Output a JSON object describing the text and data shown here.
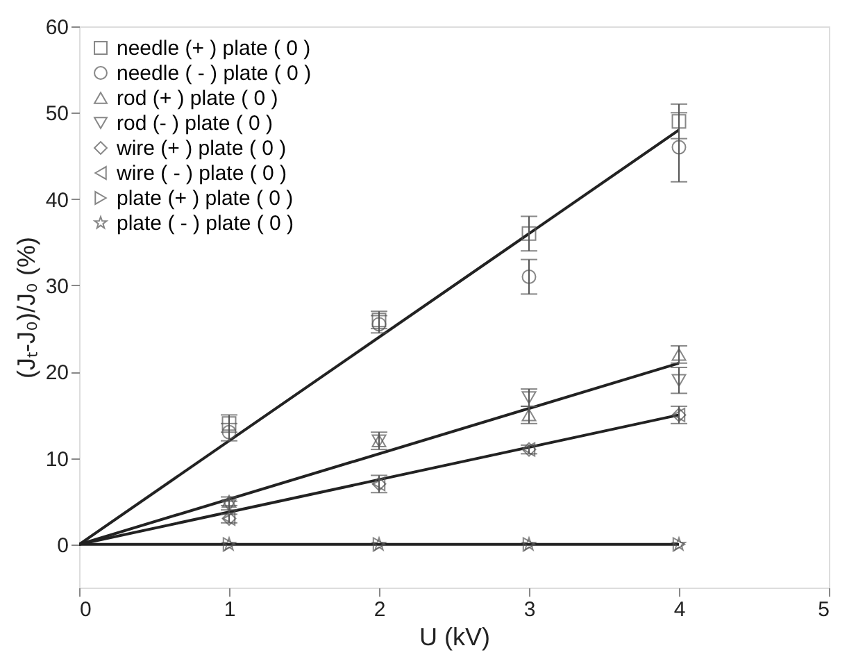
{
  "chart_data": {
    "type": "scatter",
    "xlabel": "U (kV)",
    "ylabel": "(Jₜ-J₀)/J₀ (%)",
    "xlim": [
      0,
      5
    ],
    "xticks": [
      0,
      1,
      2,
      3,
      4,
      5
    ],
    "ylim": [
      -5,
      60
    ],
    "yticks": [
      0,
      10,
      20,
      30,
      40,
      50,
      60
    ],
    "grid": false,
    "legend": "top left",
    "series": [
      {
        "name": "needle (+ ) plate ( 0 )",
        "marker": "square",
        "color": "#555555",
        "x": [
          1,
          2,
          3,
          4
        ],
        "values": [
          14,
          26,
          36,
          49
        ],
        "errors": [
          1,
          1,
          2,
          2
        ]
      },
      {
        "name": "needle ( - ) plate ( 0 )",
        "marker": "circle",
        "color": "#555555",
        "x": [
          1,
          2,
          3,
          4
        ],
        "values": [
          13,
          25.5,
          31,
          46
        ],
        "errors": [
          1,
          1,
          2,
          4
        ]
      },
      {
        "name": "rod (+ ) plate ( 0 )",
        "marker": "triangle",
        "color": "#555555",
        "x": [
          1,
          2,
          3,
          4
        ],
        "values": [
          5,
          12,
          15,
          22
        ],
        "errors": [
          0.5,
          1,
          1,
          1
        ]
      },
      {
        "name": "rod (- ) plate ( 0 )",
        "marker": "triangle-down",
        "color": "#555555",
        "x": [
          1,
          2,
          3,
          4
        ],
        "values": [
          4.5,
          12,
          17,
          19
        ],
        "errors": [
          0.5,
          null,
          1,
          1.5
        ]
      },
      {
        "name": "wire (+ ) plate ( 0 )",
        "marker": "diamond",
        "color": "#555555",
        "x": [
          1,
          2,
          3,
          4
        ],
        "values": [
          3,
          7,
          11,
          15
        ],
        "errors": [
          0.5,
          1,
          0.5,
          1
        ]
      },
      {
        "name": "wire ( - ) plate ( 0 )",
        "marker": "triangle-left",
        "color": "#555555",
        "x": [
          1,
          2,
          3,
          4
        ],
        "values": [
          3,
          7,
          11,
          15
        ]
      },
      {
        "name": "plate (+ ) plate ( 0 )",
        "marker": "triangle-right",
        "color": "#555555",
        "x": [
          1,
          2,
          3,
          4
        ],
        "values": [
          0,
          0,
          0,
          0
        ]
      },
      {
        "name": "plate ( - ) plate ( 0 )",
        "marker": "star",
        "color": "#555555",
        "x": [
          1,
          2,
          3,
          4
        ],
        "values": [
          0,
          0,
          0,
          0
        ]
      },
      {
        "type": "line",
        "color": "#222222",
        "x": [
          0,
          4
        ],
        "values": [
          0,
          48
        ]
      },
      {
        "type": "line",
        "color": "#222222",
        "x": [
          0,
          4
        ],
        "values": [
          0,
          21
        ]
      },
      {
        "type": "line",
        "color": "#222222",
        "x": [
          0,
          4
        ],
        "values": [
          0,
          15
        ]
      },
      {
        "type": "line",
        "color": "#222222",
        "x": [
          0,
          4
        ],
        "values": [
          0,
          0
        ]
      }
    ]
  }
}
